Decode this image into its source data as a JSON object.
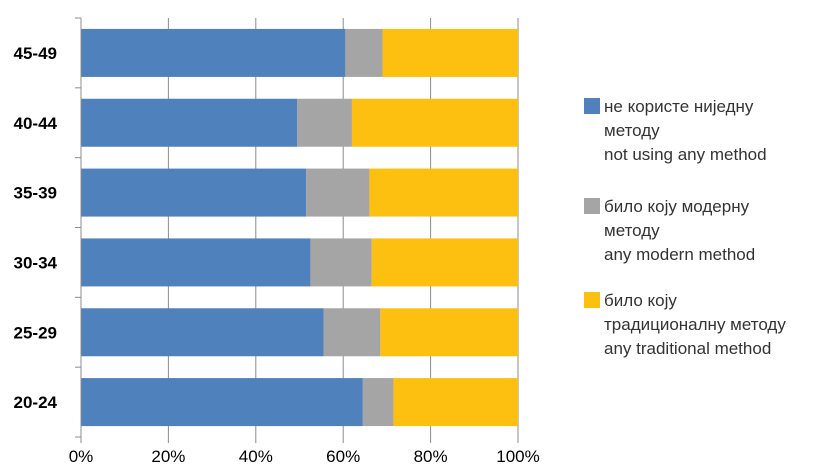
{
  "chart_data": {
    "type": "bar",
    "orientation": "horizontal",
    "stacked": "percent",
    "categories": [
      "45-49",
      "40-44",
      "35-39",
      "30-34",
      "25-29",
      "20-24"
    ],
    "series": [
      {
        "name": "не користе ниједну методу not using any method",
        "legend_lines": [
          "не користе ниједну",
          "методу",
          "not using any method"
        ],
        "color": "#4F81BD",
        "values": [
          60.5,
          49.5,
          51.5,
          52.5,
          55.5,
          64.5
        ]
      },
      {
        "name": "било коју модерну методу any modern method",
        "legend_lines": [
          "било коју модерну",
          "методу",
          "any modern method"
        ],
        "color": "#A5A5A5",
        "values": [
          8.5,
          12.5,
          14.5,
          14.0,
          13.0,
          7.0
        ]
      },
      {
        "name": "било коју традиционалну методу any traditional method",
        "legend_lines": [
          "било коју",
          "традиционалну методу",
          "any traditional method"
        ],
        "color": "#FDC010",
        "values": [
          31.0,
          38.0,
          34.0,
          33.5,
          31.5,
          28.5
        ]
      }
    ],
    "x_ticks": [
      "0%",
      "20%",
      "40%",
      "60%",
      "80%",
      "100%"
    ],
    "xlim": [
      0,
      100
    ],
    "grid": "vertical",
    "legend": "right"
  }
}
